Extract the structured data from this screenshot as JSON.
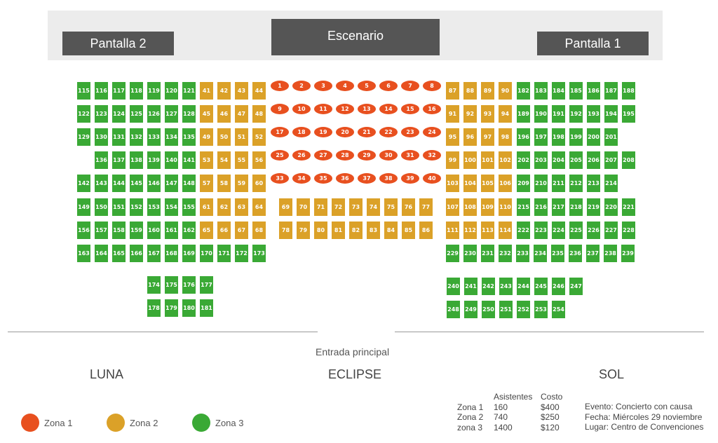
{
  "stage": {
    "screen_left": "Pantalla 2",
    "stage_label": "Escenario",
    "screen_right": "Pantalla 1"
  },
  "entrance_label": "Entrada principal",
  "sections": {
    "left": "LUNA",
    "center": "ECLIPSE",
    "right": "SOL"
  },
  "colors": {
    "zona1": "#e8501f",
    "zona2": "#dba128",
    "zona3": "#3aa935"
  },
  "legend": [
    {
      "label": "Zona 1",
      "zone": "zona1"
    },
    {
      "label": "Zona 2",
      "zone": "zona2"
    },
    {
      "label": "Zona 3",
      "zone": "zona3"
    }
  ],
  "pricing": {
    "headers": [
      "Asistentes",
      "Costo"
    ],
    "rows": [
      {
        "zone": "Zona 1",
        "attendees": "160",
        "cost": "$400"
      },
      {
        "zone": "Zona 2",
        "attendees": "740",
        "cost": "$250"
      },
      {
        "zone": "zona 3",
        "attendees": "1400",
        "cost": "$120"
      }
    ]
  },
  "event": {
    "event": "Evento: Concierto con causa",
    "date": "Fecha: Miércoles 29 noviembre",
    "place": "Lugar: Centro de Convenciones"
  },
  "seats": {
    "zona1": [
      [
        1,
        8
      ],
      [
        9,
        16
      ],
      [
        17,
        24
      ],
      [
        25,
        32
      ],
      [
        33,
        40
      ]
    ],
    "zona2_left": [
      [
        41,
        44
      ],
      [
        45,
        48
      ],
      [
        49,
        52
      ],
      [
        53,
        56
      ],
      [
        57,
        60
      ],
      [
        61,
        64
      ],
      [
        65,
        68
      ]
    ],
    "zona2_center": [
      [
        69,
        77
      ],
      [
        78,
        86
      ]
    ],
    "zona2_right": [
      [
        87,
        90
      ],
      [
        91,
        94
      ],
      [
        95,
        98
      ],
      [
        99,
        102
      ],
      [
        103,
        106
      ],
      [
        107,
        110
      ],
      [
        111,
        114
      ]
    ],
    "zona3_left": [
      [
        115,
        121
      ],
      [
        122,
        128
      ],
      [
        129,
        135
      ],
      [
        136,
        141
      ],
      [
        142,
        148
      ],
      [
        149,
        155
      ],
      [
        156,
        162
      ],
      [
        163,
        169
      ],
      [
        170,
        173
      ],
      [
        174,
        177
      ],
      [
        178,
        181
      ]
    ],
    "zona3_right": [
      [
        182,
        188
      ],
      [
        189,
        195
      ],
      [
        196,
        201
      ],
      [
        202,
        208
      ],
      [
        209,
        214
      ],
      [
        215,
        221
      ],
      [
        222,
        228
      ],
      [
        229,
        239
      ],
      [
        240,
        247
      ],
      [
        248,
        254
      ]
    ]
  }
}
